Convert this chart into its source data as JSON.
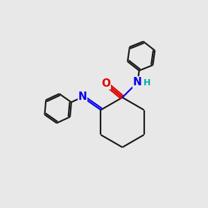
{
  "bg_color": "#e8e8e8",
  "bond_color": "#1a1a1a",
  "N_color": "#0000ee",
  "O_color": "#dd0000",
  "H_color": "#00aaaa",
  "bond_width": 1.6,
  "figsize": [
    3.0,
    3.0
  ],
  "dpi": 100,
  "xlim": [
    0,
    10
  ],
  "ylim": [
    0,
    10
  ]
}
